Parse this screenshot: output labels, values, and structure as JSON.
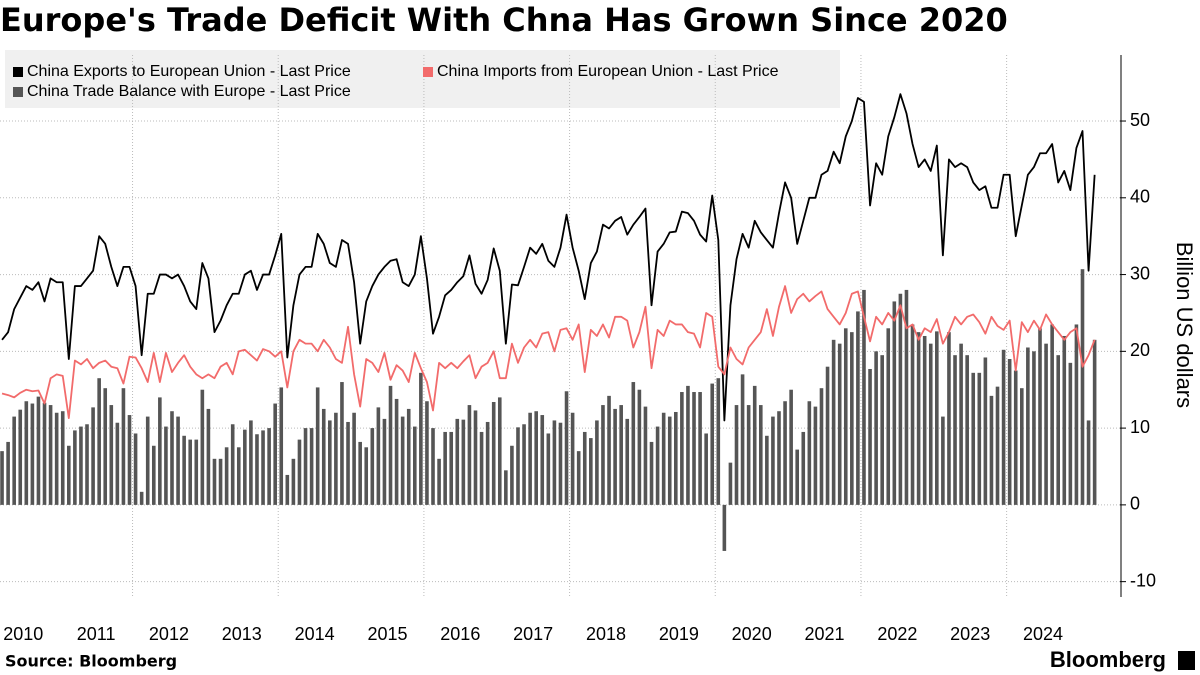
{
  "chart_data": {
    "type": "combo",
    "title": "Europe's Trade Deficit With Chna Has Grown Since 2020",
    "y_label": "Billion US dollars",
    "source": "Source: Bloomberg",
    "brand": "Bloomberg",
    "ylim": [
      -12,
      58.6
    ],
    "yticks": [
      -10,
      0,
      10,
      20,
      30,
      40,
      50
    ],
    "grid": true,
    "categories": [
      null,
      null,
      null,
      null,
      "2010",
      null,
      null,
      null,
      null,
      null,
      null,
      null,
      null,
      null,
      null,
      null,
      "2011",
      null,
      null,
      null,
      null,
      null,
      null,
      null,
      null,
      null,
      null,
      null,
      "2012",
      null,
      null,
      null,
      null,
      null,
      null,
      null,
      null,
      null,
      null,
      null,
      "2013",
      null,
      null,
      null,
      null,
      null,
      null,
      null,
      null,
      null,
      null,
      null,
      "2014",
      null,
      null,
      null,
      null,
      null,
      null,
      null,
      null,
      null,
      null,
      null,
      "2015",
      null,
      null,
      null,
      null,
      null,
      null,
      null,
      null,
      null,
      null,
      null,
      "2016",
      null,
      null,
      null,
      null,
      null,
      null,
      null,
      null,
      null,
      null,
      null,
      "2017",
      null,
      null,
      null,
      null,
      null,
      null,
      null,
      null,
      null,
      null,
      null,
      "2018",
      null,
      null,
      null,
      null,
      null,
      null,
      null,
      null,
      null,
      null,
      null,
      "2019",
      null,
      null,
      null,
      null,
      null,
      null,
      null,
      null,
      null,
      null,
      null,
      "2020",
      null,
      null,
      null,
      null,
      null,
      null,
      null,
      null,
      null,
      null,
      null,
      "2021",
      null,
      null,
      null,
      null,
      null,
      null,
      null,
      null,
      null,
      null,
      null,
      "2022",
      null,
      null,
      null,
      null,
      null,
      null,
      null,
      null,
      null,
      null,
      null,
      "2023",
      null,
      null,
      null,
      null,
      null,
      null,
      null,
      null,
      null,
      null,
      null,
      "2024",
      null,
      null,
      null,
      null,
      null,
      null,
      null,
      null
    ],
    "series": [
      {
        "name": "China Exports to European Union - Last Price",
        "type": "line",
        "color": "#000000",
        "values": [
          21.5,
          22.5,
          25.5,
          27,
          28.5,
          28,
          29,
          26.5,
          29.5,
          29,
          29,
          19,
          28.5,
          28.5,
          29.5,
          30.5,
          35,
          34,
          31,
          28.5,
          31,
          31,
          28.5,
          19.5,
          27.5,
          27.5,
          30,
          30,
          29.5,
          30,
          28.5,
          26.5,
          25.5,
          31.5,
          29.5,
          22.5,
          24,
          26,
          27.5,
          27.5,
          30,
          30.5,
          28,
          30,
          30,
          32.5,
          35.3,
          19.2,
          26,
          30,
          31,
          31,
          35.3,
          34,
          31.5,
          31,
          34.5,
          34,
          29,
          21,
          26.5,
          28.5,
          30,
          31,
          31.8,
          32,
          29,
          28.5,
          30,
          35,
          29.5,
          22.3,
          24.5,
          27.3,
          28,
          29,
          29.8,
          32.5,
          28.8,
          27.5,
          29.3,
          33.4,
          30.5,
          21,
          28.7,
          28.6,
          31,
          33.5,
          32.7,
          34,
          31.8,
          31,
          33.5,
          37.8,
          33.5,
          30.5,
          26.8,
          31.5,
          33,
          36.5,
          36,
          37,
          37.5,
          35.2,
          36.5,
          37.5,
          38.6,
          26,
          33,
          34,
          35.5,
          35.6,
          38.2,
          38,
          37,
          35.2,
          34.3,
          40.3,
          34.5,
          11,
          26,
          32,
          35.3,
          33.5,
          37,
          35.5,
          34.5,
          33.5,
          38,
          42,
          40,
          34,
          37,
          40,
          40,
          43,
          43.5,
          46,
          44.5,
          48,
          50,
          53,
          52.5,
          39,
          44.5,
          43,
          48,
          50.5,
          53.5,
          51,
          47,
          44,
          45,
          43.5,
          46.8,
          32.5,
          45,
          44,
          44.5,
          44,
          42,
          41,
          41.5,
          38.7,
          38.7,
          43,
          43,
          35,
          39,
          43,
          44,
          45.8,
          45.8,
          47,
          42,
          43.5,
          41,
          46.5,
          48.7,
          30.5,
          43
        ]
      },
      {
        "name": "China Imports from European Union - Last Price",
        "type": "line",
        "color": "#f26b6b",
        "values": [
          14.5,
          14.3,
          14,
          14.6,
          15,
          14.8,
          14.9,
          13.2,
          16.5,
          17,
          16.8,
          11.3,
          18.8,
          18.3,
          19,
          17.8,
          18.5,
          18.8,
          18,
          17.8,
          15.8,
          19.3,
          19.2,
          17.8,
          16,
          19.8,
          16,
          19.8,
          17.3,
          18.5,
          19.5,
          18,
          17,
          16.5,
          17,
          16.5,
          18,
          18.5,
          17,
          20,
          20.2,
          19.5,
          18.8,
          20.3,
          20,
          19.3,
          20,
          15.3,
          20,
          21.5,
          21,
          21,
          20,
          21.5,
          20.5,
          19,
          18.5,
          23.2,
          17,
          12.8,
          19,
          18.5,
          17.3,
          19.8,
          16.3,
          18.2,
          17.5,
          16,
          19.8,
          17.8,
          16,
          12.3,
          18.5,
          17.8,
          18.5,
          17.8,
          18.7,
          19.5,
          16.5,
          18,
          18.5,
          20,
          16.5,
          16.5,
          21,
          18.5,
          20.5,
          21.5,
          20.5,
          22.3,
          22.5,
          20,
          22.8,
          23,
          21.5,
          23.5,
          17.3,
          22.8,
          22,
          23.5,
          21.8,
          24.5,
          24.5,
          24,
          20.5,
          22.5,
          25.8,
          17.8,
          22.8,
          22,
          24,
          23.5,
          23.5,
          22.5,
          22.3,
          20.5,
          25,
          24.5,
          18,
          17,
          20.5,
          19,
          18.3,
          20.5,
          21.5,
          22.5,
          25.5,
          22,
          25.8,
          28.5,
          25,
          26.8,
          27.5,
          26.5,
          27.2,
          27.8,
          25.5,
          24.5,
          23.5,
          25,
          27.5,
          27.8,
          24.5,
          21.3,
          24.5,
          23.5,
          25,
          24,
          26,
          23,
          23.5,
          21.5,
          23,
          22.5,
          24.2,
          21,
          22.5,
          24.5,
          23.5,
          24.5,
          24.8,
          23.8,
          22.3,
          24.5,
          23.3,
          22.8,
          24,
          17.5,
          23.8,
          22.5,
          24,
          22.8,
          24.8,
          23.5,
          22.5,
          21.5,
          22.5,
          23,
          18,
          19.5,
          21.5
        ]
      },
      {
        "name": "China Trade Balance with Europe - Last Price",
        "type": "bar",
        "color": "#555555",
        "values": [
          7,
          8.2,
          11.5,
          12.4,
          13.5,
          13.2,
          14.1,
          13.3,
          13,
          12,
          12.2,
          7.7,
          9.7,
          10.2,
          10.5,
          12.7,
          16.5,
          15.2,
          13,
          10.7,
          15.2,
          11.7,
          9.3,
          1.7,
          11.5,
          7.7,
          14,
          10.2,
          12.2,
          11.5,
          9,
          8.5,
          8.5,
          15,
          12.5,
          6,
          6,
          7.5,
          10.5,
          7.5,
          9.8,
          11,
          9.2,
          9.7,
          10,
          13.2,
          15.3,
          3.9,
          6,
          8.5,
          10,
          10,
          15.3,
          12.5,
          11,
          12,
          16,
          10.8,
          12,
          8.2,
          7.5,
          10,
          12.7,
          11.2,
          15.5,
          13.8,
          11.5,
          12.5,
          10.2,
          17.2,
          13.5,
          10,
          6,
          9.5,
          9.5,
          11.2,
          11.1,
          13,
          12.3,
          9.5,
          10.8,
          13.4,
          14,
          4.5,
          7.7,
          10.1,
          10.5,
          12,
          12.2,
          11.7,
          9.3,
          11,
          10.7,
          14.8,
          12,
          7,
          9.5,
          8.7,
          11,
          13,
          14.2,
          12.5,
          13,
          11.2,
          16,
          15,
          12.8,
          8.2,
          10.2,
          12,
          11.5,
          12.1,
          14.7,
          15.5,
          14.7,
          14.7,
          9.3,
          15.8,
          16.5,
          -6,
          5.5,
          13,
          17,
          13,
          15.5,
          13,
          9,
          11.5,
          12.2,
          13.5,
          15,
          7.2,
          9.5,
          13.5,
          12.8,
          15.2,
          18,
          21.5,
          21,
          23,
          22.5,
          25.2,
          28,
          17.7,
          20,
          19.5,
          23,
          26.5,
          27.5,
          28,
          23.5,
          22.5,
          22,
          21,
          22.6,
          11.5,
          22.5,
          19.5,
          21,
          19.5,
          17.2,
          17.2,
          19.2,
          14.2,
          15.4,
          20.2,
          19,
          17.5,
          15.2,
          20.5,
          20,
          23,
          21,
          23.5,
          19.5,
          22,
          18.5,
          23.5,
          30.7,
          11,
          21.5
        ]
      }
    ]
  }
}
